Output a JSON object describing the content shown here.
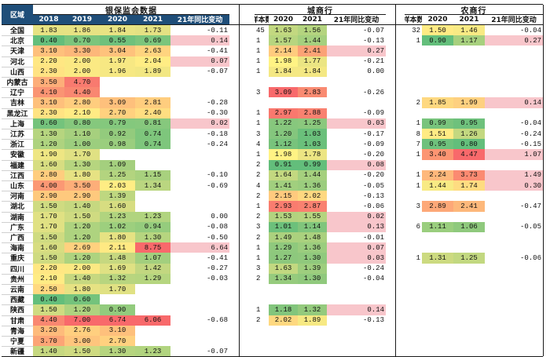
{
  "headers": {
    "region": "区域",
    "group_banking": "银保监会数据",
    "group_city": "城商行",
    "group_rural": "农商行",
    "banking_cols": [
      "2018",
      "2019",
      "2020",
      "2021",
      "21年同比变动"
    ],
    "city_cols": [
      "样本数",
      "2020",
      "2021",
      "21年同比变动"
    ],
    "rural_cols": [
      "样本数",
      "2020",
      "2021",
      "21年同比变动"
    ]
  },
  "colors": {
    "header_dark": "#1f4e79",
    "green": "#63be7b",
    "yellow": "#ffeb84",
    "red": "#f8696b",
    "pink": "#f8c6cb"
  },
  "rows": [
    {
      "region": "全国",
      "banking": [
        "1.83",
        "1.86",
        "1.84",
        "1.73",
        "-0.11"
      ],
      "banking_colors": [
        "#e6e283",
        "#e7e283",
        "#e8e383",
        "#e4e183",
        ""
      ],
      "city": [
        "45",
        "1.63",
        "1.56",
        "-0.07"
      ],
      "city_colors": [
        "",
        "#c2d880",
        "#b4d47f",
        ""
      ],
      "rural": [
        "32",
        "1.50",
        "1.46",
        "-0.04"
      ],
      "rural_colors": [
        "",
        "#ffeb84",
        "#f8ea84",
        ""
      ]
    },
    {
      "region": "北京",
      "banking": [
        "0.40",
        "0.70",
        "0.55",
        "0.69",
        "0.14"
      ],
      "banking_colors": [
        "#63be7b",
        "#7cc57c",
        "#6fc17c",
        "#7bc57c",
        "#f8c6cb"
      ],
      "city": [
        "1",
        "1.57",
        "1.44",
        "-0.13"
      ],
      "city_colors": [
        "",
        "#b7d57f",
        "#a5d07e",
        ""
      ],
      "rural": [
        "1",
        "0.90",
        "1.17",
        "0.27"
      ],
      "rural_colors": [
        "",
        "#63be7b",
        "#a7d07e",
        "#f8c6cb"
      ]
    },
    {
      "region": "天津",
      "banking": [
        "3.10",
        "3.30",
        "3.04",
        "2.63",
        "-0.41"
      ],
      "banking_colors": [
        "#fec07c",
        "#fdb77a",
        "#fec27c",
        "#ffd47f",
        ""
      ],
      "city": [
        "1",
        "2.14",
        "2.41",
        "0.27"
      ],
      "city_colors": [
        "",
        "#ffcb7e",
        "#fba276",
        "#f8c6cb"
      ],
      "rural": [
        "",
        "",
        "",
        ""
      ],
      "rural_colors": [
        "",
        "",
        "",
        ""
      ]
    },
    {
      "region": "河北",
      "banking": [
        "2.20",
        "2.00",
        "1.97",
        "2.04",
        "0.07"
      ],
      "banking_colors": [
        "#ffe783",
        "#fbe983",
        "#f7e883",
        "#ffed84",
        "#f8c6cb"
      ],
      "city": [
        "1",
        "1.98",
        "1.77",
        "-0.21"
      ],
      "city_colors": [
        "",
        "#fff384",
        "#ebe583",
        ""
      ],
      "rural": [
        "",
        "",
        "",
        ""
      ],
      "rural_colors": [
        "",
        "",
        "",
        ""
      ]
    },
    {
      "region": "山西",
      "banking": [
        "2.30",
        "2.00",
        "1.96",
        "1.89",
        "-0.07"
      ],
      "banking_colors": [
        "#ffe383",
        "#fbe983",
        "#f6e883",
        "#f2e783",
        ""
      ],
      "city": [
        "1",
        "1.84",
        "1.84",
        "0.00"
      ],
      "city_colors": [
        "",
        "#f4e883",
        "#f4e883",
        ""
      ],
      "rural": [
        "",
        "",
        "",
        ""
      ],
      "rural_colors": [
        "",
        "",
        "",
        ""
      ]
    },
    {
      "region": "内蒙古",
      "banking": [
        "3.50",
        "4.70",
        "",
        "",
        ""
      ],
      "banking_colors": [
        "#fdae79",
        "#f87a6f",
        "",
        "",
        ""
      ],
      "city": [
        "",
        "",
        "",
        ""
      ],
      "city_colors": [
        "",
        "",
        "",
        ""
      ],
      "rural": [
        "",
        "",
        "",
        ""
      ],
      "rural_colors": [
        "",
        "",
        "",
        ""
      ]
    },
    {
      "region": "辽宁",
      "banking": [
        "4.10",
        "4.40",
        "",
        "",
        ""
      ],
      "banking_colors": [
        "#fa9473",
        "#f98771",
        "",
        "",
        ""
      ],
      "city": [
        "3",
        "3.09",
        "2.83",
        "-0.26"
      ],
      "city_colors": [
        "",
        "#f8696b",
        "#f98a71",
        ""
      ],
      "rural": [
        "",
        "",
        "",
        ""
      ],
      "rural_colors": [
        "",
        "",
        "",
        ""
      ]
    },
    {
      "region": "吉林",
      "banking": [
        "3.10",
        "2.80",
        "3.09",
        "2.81",
        "-0.28"
      ],
      "banking_colors": [
        "#fec07c",
        "#ffcd7e",
        "#fec07c",
        "#ffcd7e",
        ""
      ],
      "city": [
        "",
        "",
        "",
        ""
      ],
      "city_colors": [
        "",
        "",
        "",
        ""
      ],
      "rural": [
        "2",
        "1.85",
        "1.99",
        "0.14"
      ],
      "rural_colors": [
        "",
        "#fed880",
        "#fed080",
        "#f8c6cb"
      ]
    },
    {
      "region": "黑龙江",
      "banking": [
        "2.30",
        "2.10",
        "2.70",
        "2.40",
        "-0.30"
      ],
      "banking_colors": [
        "#ffe383",
        "#ffeb84",
        "#ffd17f",
        "#ffde81",
        ""
      ],
      "city": [
        "1",
        "2.97",
        "2.88",
        "-0.09"
      ],
      "city_colors": [
        "",
        "#f9786e",
        "#f98170",
        ""
      ],
      "rural": [
        "",
        "",
        "",
        ""
      ],
      "rural_colors": [
        "",
        "",
        "",
        ""
      ]
    },
    {
      "region": "上海",
      "banking": [
        "0.60",
        "0.80",
        "0.79",
        "0.81",
        "0.02"
      ],
      "banking_colors": [
        "#74c37c",
        "#85c87d",
        "#84c87d",
        "#86c87d",
        "#f8c6cb"
      ],
      "city": [
        "1",
        "1.22",
        "1.25",
        "0.03"
      ],
      "city_colors": [
        "",
        "#87c77d",
        "#8bc87d",
        "#f8c6cb"
      ],
      "rural": [
        "1",
        "0.99",
        "0.95",
        "-0.04"
      ],
      "rural_colors": [
        "",
        "#78c47c",
        "#6ec17c",
        ""
      ]
    },
    {
      "region": "江苏",
      "banking": [
        "1.30",
        "1.10",
        "0.92",
        "0.74",
        "-0.18"
      ],
      "banking_colors": [
        "#b6d57f",
        "#a6d07e",
        "#93cb7d",
        "#7ec67c",
        ""
      ],
      "city": [
        "3",
        "1.20",
        "1.03",
        "-0.17"
      ],
      "city_colors": [
        "",
        "#84c67d",
        "#6ac07b",
        ""
      ],
      "rural": [
        "8",
        "1.51",
        "1.26",
        "-0.24"
      ],
      "rural_colors": [
        "",
        "#ffeb84",
        "#c3d880",
        ""
      ]
    },
    {
      "region": "浙江",
      "banking": [
        "1.20",
        "1.00",
        "0.98",
        "0.74",
        "-0.24"
      ],
      "banking_colors": [
        "#aed37f",
        "#9cce7e",
        "#9ace7e",
        "#7ec67c",
        ""
      ],
      "city": [
        "4",
        "1.12",
        "1.03",
        "-0.09"
      ],
      "city_colors": [
        "",
        "#78c37c",
        "#6ac07b",
        ""
      ],
      "rural": [
        "7",
        "0.95",
        "0.80",
        "-0.15"
      ],
      "rural_colors": [
        "",
        "#6ec17c",
        "#63be7b",
        ""
      ]
    },
    {
      "region": "安徽",
      "banking": [
        "1.90",
        "1.70",
        "",
        "",
        ""
      ],
      "banking_colors": [
        "#eee683",
        "#e0e183",
        "",
        "",
        ""
      ],
      "city": [
        "1",
        "1.98",
        "1.78",
        "-0.20"
      ],
      "city_colors": [
        "",
        "#fff384",
        "#ece583",
        ""
      ],
      "rural": [
        "1",
        "3.40",
        "4.47",
        "1.07"
      ],
      "rural_colors": [
        "",
        "#fc9572",
        "#f8696b",
        "#f8c6cb"
      ]
    },
    {
      "region": "福建",
      "banking": [
        "1.60",
        "1.30",
        "1.09",
        "",
        ""
      ],
      "banking_colors": [
        "#d7dd81",
        "#b6d57f",
        "#a4cf7e",
        "",
        ""
      ],
      "city": [
        "2",
        "0.91",
        "0.99",
        "0.08"
      ],
      "city_colors": [
        "",
        "#63be7b",
        "#63be7b",
        "#f8c6cb"
      ],
      "rural": [
        "",
        "",
        "",
        ""
      ],
      "rural_colors": [
        "",
        "",
        "",
        ""
      ]
    },
    {
      "region": "江西",
      "banking": [
        "2.80",
        "1.80",
        "1.25",
        "1.15",
        "-0.10"
      ],
      "banking_colors": [
        "#ffcd7e",
        "#e6e283",
        "#b3d47f",
        "#a8d17e",
        ""
      ],
      "city": [
        "2",
        "1.64",
        "1.44",
        "-0.20"
      ],
      "city_colors": [
        "",
        "#c3d880",
        "#a5d07e",
        ""
      ],
      "rural": [
        "1",
        "2.24",
        "3.73",
        "1.49"
      ],
      "rural_colors": [
        "",
        "#feb87b",
        "#fb8a71",
        "#f8c6cb"
      ]
    },
    {
      "region": "山东",
      "banking": [
        "4.00",
        "3.50",
        "2.03",
        "1.34",
        "-0.69"
      ],
      "banking_colors": [
        "#fb9874",
        "#fdae79",
        "#ffed84",
        "#bad680",
        ""
      ],
      "city": [
        "4",
        "1.41",
        "1.36",
        "-0.05"
      ],
      "city_colors": [
        "",
        "#a1cf7e",
        "#9bcd7e",
        ""
      ],
      "rural": [
        "1",
        "1.44",
        "1.74",
        "0.30"
      ],
      "rural_colors": [
        "",
        "#f8ea84",
        "#fedc81",
        "#f8c6cb"
      ]
    },
    {
      "region": "河南",
      "banking": [
        "2.90",
        "2.90",
        "1.39",
        "",
        ""
      ],
      "banking_colors": [
        "#fec97d",
        "#fec97d",
        "#bed780",
        "",
        ""
      ],
      "city": [
        "2",
        "2.15",
        "2.02",
        "-0.13"
      ],
      "city_colors": [
        "",
        "#ffca7e",
        "#fed880",
        ""
      ],
      "rural": [
        "",
        "",
        "",
        ""
      ],
      "rural_colors": [
        "",
        "",
        "",
        ""
      ]
    },
    {
      "region": "湖北",
      "banking": [
        "1.50",
        "1.40",
        "1.60",
        "",
        ""
      ],
      "banking_colors": [
        "#cfdb81",
        "#c6d880",
        "#d7dd81",
        "",
        ""
      ],
      "city": [
        "1",
        "2.93",
        "2.87",
        "-0.06"
      ],
      "city_colors": [
        "",
        "#f97c6f",
        "#f98170",
        ""
      ],
      "rural": [
        "3",
        "2.89",
        "2.41",
        "-0.47"
      ],
      "rural_colors": [
        "",
        "#fda878",
        "#fdb87b",
        ""
      ]
    },
    {
      "region": "湖南",
      "banking": [
        "1.70",
        "1.50",
        "1.23",
        "1.23",
        "0.00"
      ],
      "banking_colors": [
        "#e0e183",
        "#cfdb81",
        "#b1d47f",
        "#b1d47f",
        ""
      ],
      "city": [
        "2",
        "1.53",
        "1.55",
        "0.02"
      ],
      "city_colors": [
        "",
        "#b2d37f",
        "#b5d47f",
        "#f8c6cb"
      ],
      "rural": [
        "",
        "",
        "",
        ""
      ],
      "rural_colors": [
        "",
        "",
        "",
        ""
      ]
    },
    {
      "region": "广东",
      "banking": [
        "1.70",
        "1.20",
        "1.02",
        "0.94",
        "-0.08"
      ],
      "banking_colors": [
        "#e0e183",
        "#aed37f",
        "#9dcf7e",
        "#95cc7d",
        ""
      ],
      "city": [
        "3",
        "1.01",
        "1.14",
        "0.13"
      ],
      "city_colors": [
        "",
        "#6cc07b",
        "#80c57c",
        "#f8c6cb"
      ],
      "rural": [
        "6",
        "1.11",
        "1.06",
        "-0.05"
      ],
      "rural_colors": [
        "",
        "#9ace7e",
        "#8fc97d",
        ""
      ]
    },
    {
      "region": "广西",
      "banking": [
        "1.50",
        "1.20",
        "1.80",
        "1.30",
        "-0.50"
      ],
      "banking_colors": [
        "#cfdb81",
        "#aed37f",
        "#e6e283",
        "#b6d57f",
        ""
      ],
      "city": [
        "2",
        "1.49",
        "1.48",
        "-0.01"
      ],
      "city_colors": [
        "",
        "#abd17e",
        "#aad17e",
        ""
      ],
      "rural": [
        "",
        "",
        "",
        ""
      ],
      "rural_colors": [
        "",
        "",
        "",
        ""
      ]
    },
    {
      "region": "海南",
      "banking": [
        "1.60",
        "2.69",
        "2.11",
        "8.75",
        "6.64"
      ],
      "banking_colors": [
        "#d7dd81",
        "#ffd17f",
        "#ffe983",
        "#f8696b",
        "#f8c6cb"
      ],
      "city": [
        "1",
        "1.29",
        "1.36",
        "0.07"
      ],
      "city_colors": [
        "",
        "#8fc97d",
        "#9bcd7e",
        "#f8c6cb"
      ],
      "rural": [
        "",
        "",
        "",
        ""
      ],
      "rural_colors": [
        "",
        "",
        "",
        ""
      ]
    },
    {
      "region": "重庆",
      "banking": [
        "1.50",
        "1.20",
        "1.48",
        "1.07",
        "-0.41"
      ],
      "banking_colors": [
        "#cfdb81",
        "#aed37f",
        "#c6d880",
        "#a2cf7e",
        ""
      ],
      "city": [
        "1",
        "1.27",
        "1.30",
        "0.03"
      ],
      "city_colors": [
        "",
        "#8dc87d",
        "#90c97d",
        "#f8c6cb"
      ],
      "rural": [
        "1",
        "1.31",
        "1.25",
        "-0.06"
      ],
      "rural_colors": [
        "",
        "#ccda80",
        "#c2d880",
        ""
      ]
    },
    {
      "region": "四川",
      "banking": [
        "2.20",
        "2.00",
        "1.69",
        "1.42",
        "-0.27"
      ],
      "banking_colors": [
        "#ffe783",
        "#fbe983",
        "#dfe183",
        "#c2d780",
        ""
      ],
      "city": [
        "3",
        "1.63",
        "1.39",
        "-0.24"
      ],
      "city_colors": [
        "",
        "#c2d880",
        "#9ece7e",
        ""
      ],
      "rural": [
        "",
        "",
        "",
        ""
      ],
      "rural_colors": [
        "",
        "",
        "",
        ""
      ]
    },
    {
      "region": "贵州",
      "banking": [
        "2.10",
        "1.40",
        "1.32",
        "1.29",
        "-0.03"
      ],
      "banking_colors": [
        "#ffeb84",
        "#c6d880",
        "#b8d57f",
        "#b5d57f",
        ""
      ],
      "city": [
        "2",
        "1.34",
        "1.30",
        "-0.04"
      ],
      "city_colors": [
        "",
        "#96cb7d",
        "#90c97d",
        ""
      ],
      "rural": [
        "",
        "",
        "",
        ""
      ],
      "rural_colors": [
        "",
        "",
        "",
        ""
      ]
    },
    {
      "region": "云南",
      "banking": [
        "2.50",
        "1.80",
        "1.70",
        "",
        ""
      ],
      "banking_colors": [
        "#ffd980",
        "#e6e283",
        "#e0e183",
        "",
        ""
      ],
      "city": [
        "",
        "",
        "",
        ""
      ],
      "city_colors": [
        "",
        "",
        "",
        ""
      ],
      "rural": [
        "",
        "",
        "",
        ""
      ],
      "rural_colors": [
        "",
        "",
        "",
        ""
      ]
    },
    {
      "region": "西藏",
      "banking": [
        "0.40",
        "0.60",
        "",
        "",
        ""
      ],
      "banking_colors": [
        "#63be7b",
        "#74c37c",
        "",
        "",
        ""
      ],
      "city": [
        "",
        "",
        "",
        ""
      ],
      "city_colors": [
        "",
        "",
        "",
        ""
      ],
      "rural": [
        "",
        "",
        "",
        ""
      ],
      "rural_colors": [
        "",
        "",
        "",
        ""
      ]
    },
    {
      "region": "陕西",
      "banking": [
        "1.50",
        "1.20",
        "0.90",
        "",
        ""
      ],
      "banking_colors": [
        "#cfdb81",
        "#aed37f",
        "#92cb7d",
        "",
        ""
      ],
      "city": [
        "1",
        "1.18",
        "1.32",
        "0.14"
      ],
      "city_colors": [
        "",
        "#82c57c",
        "#94ca7d",
        "#f8c6cb"
      ],
      "rural": [
        "",
        "",
        "",
        ""
      ],
      "rural_colors": [
        "",
        "",
        "",
        ""
      ]
    },
    {
      "region": "甘肃",
      "banking": [
        "4.40",
        "7.00",
        "6.74",
        "6.06",
        "-0.68"
      ],
      "banking_colors": [
        "#f98771",
        "#f8696b",
        "#f8696b",
        "#f8696b",
        ""
      ],
      "city": [
        "2",
        "2.02",
        "1.89",
        "-0.13"
      ],
      "city_colors": [
        "",
        "#fed880",
        "#f7e983",
        ""
      ],
      "rural": [
        "",
        "",
        "",
        ""
      ],
      "rural_colors": [
        "",
        "",
        "",
        ""
      ]
    },
    {
      "region": "青海",
      "banking": [
        "3.20",
        "2.76",
        "3.10",
        "",
        ""
      ],
      "banking_colors": [
        "#febb7b",
        "#ffcf7f",
        "#fec07c",
        "",
        ""
      ],
      "city": [
        "",
        "",
        "",
        ""
      ],
      "city_colors": [
        "",
        "",
        "",
        ""
      ],
      "rural": [
        "",
        "",
        "",
        ""
      ],
      "rural_colors": [
        "",
        "",
        "",
        ""
      ]
    },
    {
      "region": "宁夏",
      "banking": [
        "3.70",
        "3.00",
        "2.70",
        "",
        ""
      ],
      "banking_colors": [
        "#fca476",
        "#fec57d",
        "#ffd17f",
        "",
        ""
      ],
      "city": [
        "",
        "",
        "",
        ""
      ],
      "city_colors": [
        "",
        "",
        "",
        ""
      ],
      "rural": [
        "",
        "",
        "",
        ""
      ],
      "rural_colors": [
        "",
        "",
        "",
        ""
      ]
    },
    {
      "region": "新疆",
      "banking": [
        "1.40",
        "1.50",
        "1.30",
        "1.23",
        "-0.07"
      ],
      "banking_colors": [
        "#c6d880",
        "#cfdb81",
        "#b6d57f",
        "#b1d47f",
        ""
      ],
      "city": [
        "",
        "",
        "",
        ""
      ],
      "city_colors": [
        "",
        "",
        "",
        ""
      ],
      "rural": [
        "",
        "",
        "",
        ""
      ],
      "rural_colors": [
        "",
        "",
        "",
        ""
      ]
    }
  ]
}
